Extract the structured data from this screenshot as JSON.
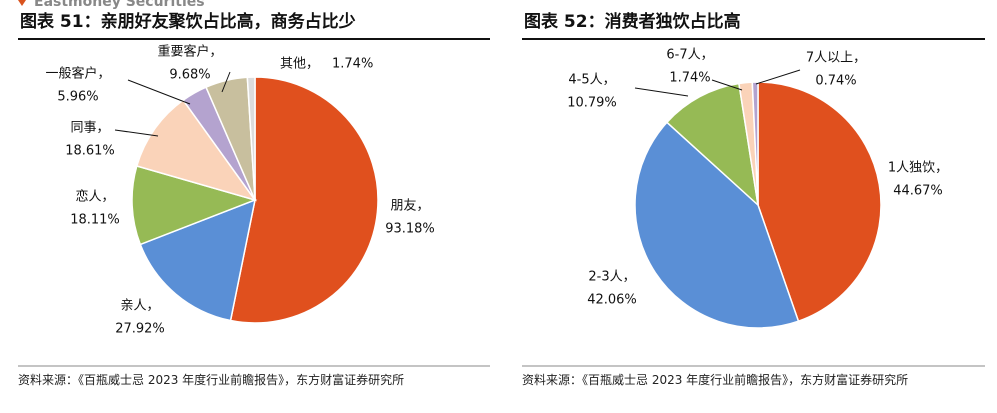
{
  "header": {
    "brand": "Eastmoney Securities"
  },
  "chart_data": [
    {
      "type": "pie",
      "title": "图表 51：亲朋好友聚饮占比高，商务占比少",
      "categories": [
        "朋友，",
        "亲人，",
        "恋人，",
        "同事，",
        "一般客户，",
        "重要客户，",
        "其他，"
      ],
      "values": [
        93.18,
        27.92,
        18.11,
        18.61,
        5.96,
        9.68,
        1.74
      ],
      "value_labels": [
        "93.18%",
        "27.92%",
        "18.11%",
        "18.61%",
        "5.96%",
        "9.68%",
        "1.74%"
      ],
      "colors": [
        "#e0501e",
        "#5a8fd6",
        "#96ba55",
        "#fad3b9",
        "#b4a3cf",
        "#c8bf9e",
        "#dcdcdc"
      ],
      "source": "资料来源：《百瓶威士忌 2023 年度行业前瞻报告》，东方财富证券研究所"
    },
    {
      "type": "pie",
      "title": "图表 52：消费者独饮占比高",
      "categories": [
        "1人独饮，",
        "2-3人，",
        "4-5人，",
        "6-7人，",
        "7人以上，"
      ],
      "values": [
        44.67,
        42.06,
        10.79,
        1.74,
        0.74
      ],
      "value_labels": [
        "44.67%",
        "42.06%",
        "10.79%",
        "1.74%",
        "0.74%"
      ],
      "colors": [
        "#e0501e",
        "#5a8fd6",
        "#96ba55",
        "#fad3b9",
        "#b4a3cf"
      ],
      "source": "资料来源：《百瓶威士忌 2023 年度行业前瞻报告》，东方财富证券研究所"
    }
  ]
}
